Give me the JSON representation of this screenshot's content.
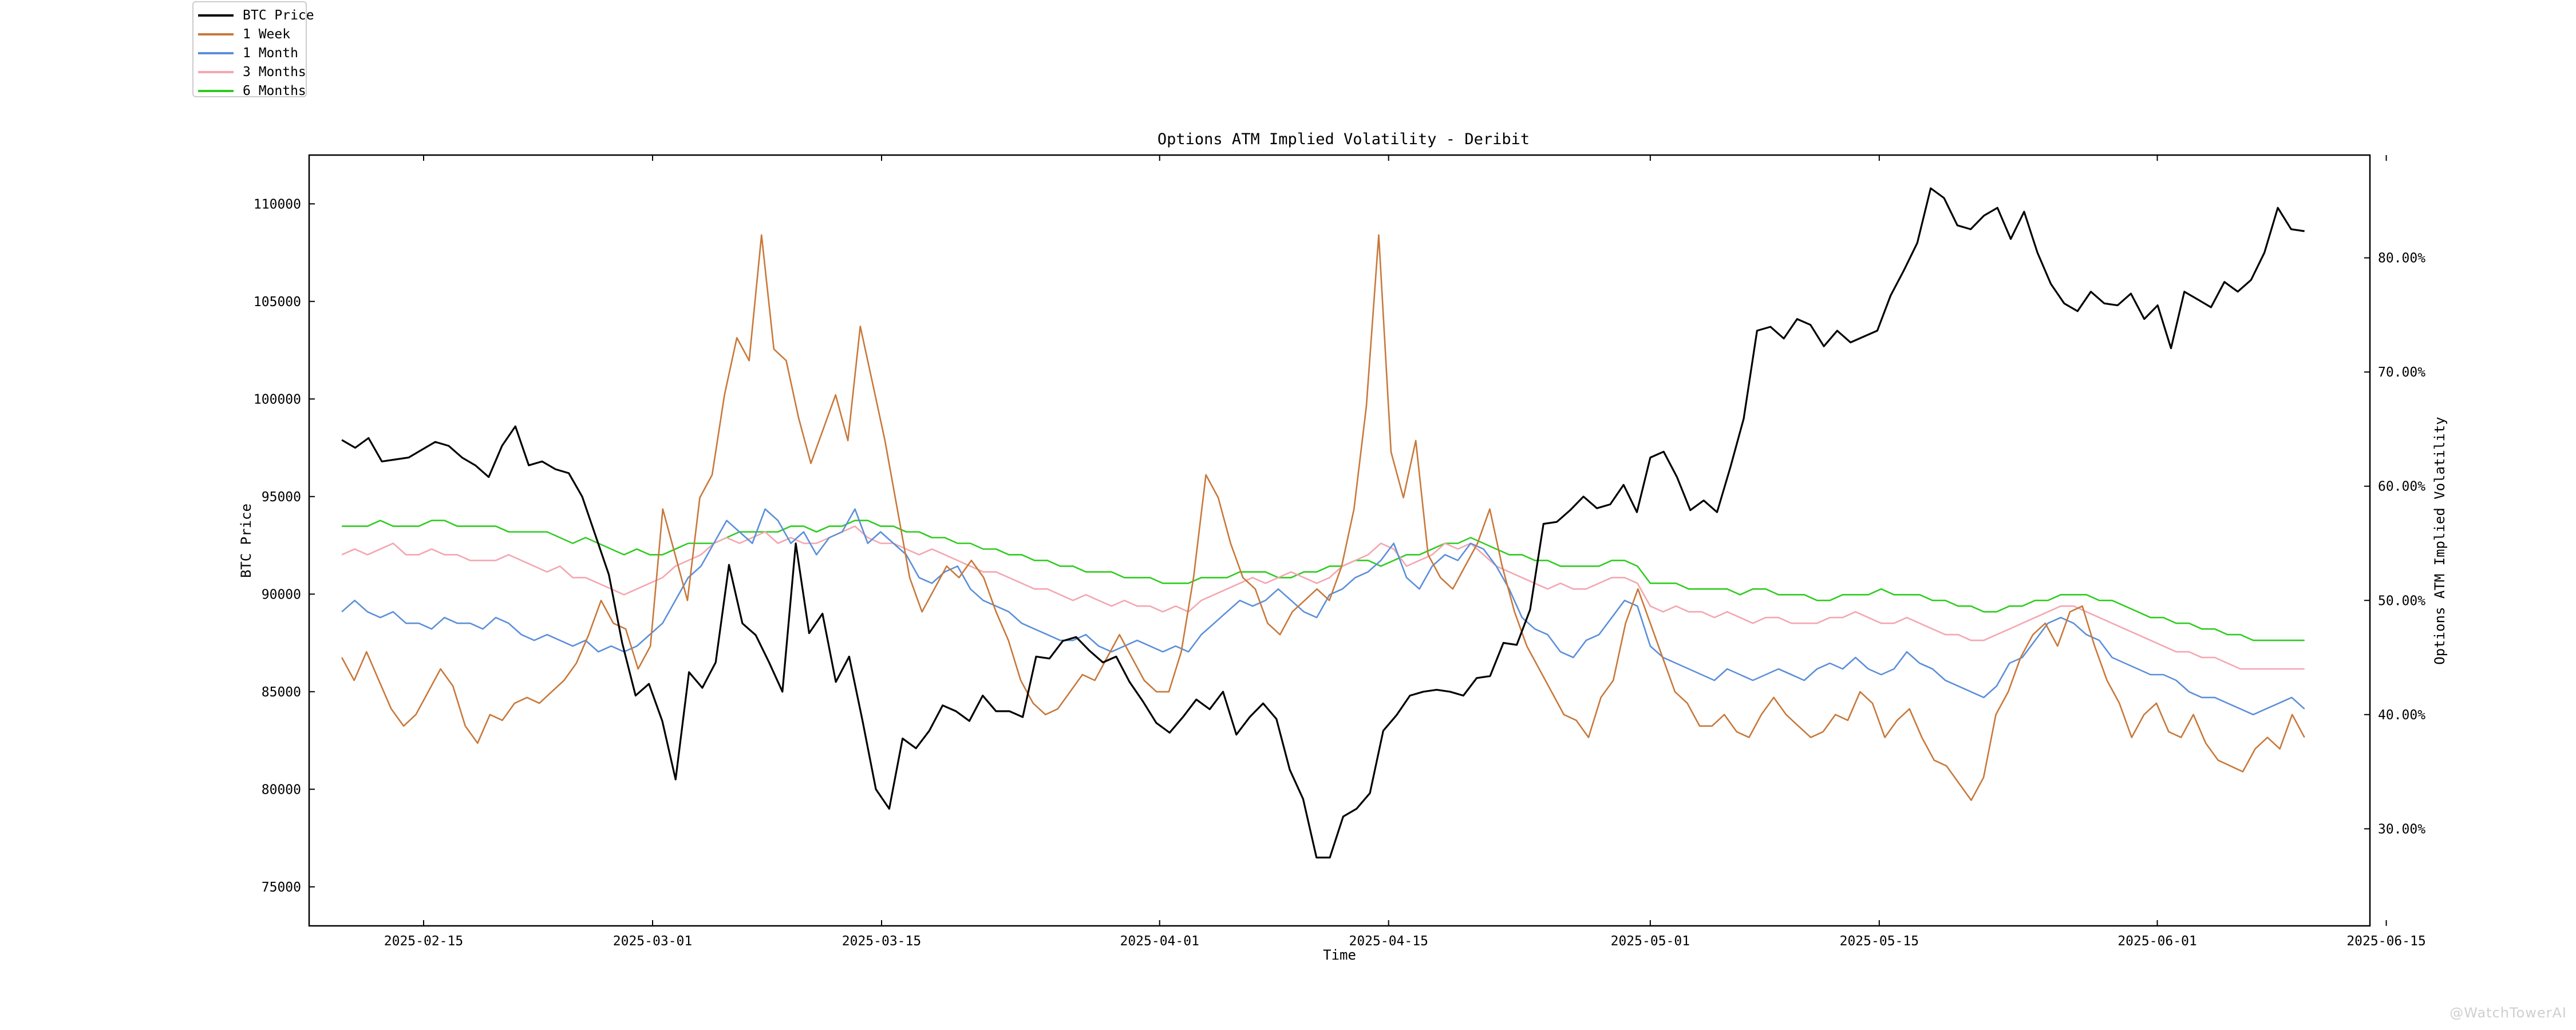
{
  "chart_data": {
    "type": "line",
    "title": "Options ATM Implied Volatility - Deribit",
    "xlabel": "Time",
    "ylabel_left": "BTC Price",
    "ylabel_right": "Options ATM Implied Volatility",
    "x_start": "2025-02-10",
    "x_end": "2025-06-10",
    "xlim": [
      "2025-02-08",
      "2025-06-14"
    ],
    "xticks": [
      "2025-02-15",
      "2025-03-01",
      "2025-03-15",
      "2025-04-01",
      "2025-04-15",
      "2025-05-01",
      "2025-05-15",
      "2025-06-01",
      "2025-06-15"
    ],
    "ylim_left": [
      73000,
      112500
    ],
    "yticks_left": [
      75000,
      80000,
      85000,
      90000,
      95000,
      100000,
      105000,
      110000
    ],
    "ylim_right": [
      21.5,
      89.0
    ],
    "yticks_right": [
      30,
      40,
      50,
      60,
      70,
      80
    ],
    "ytick_labels_right": [
      "30.00%",
      "40.00%",
      "50.00%",
      "60.00%",
      "70.00%",
      "80.00%"
    ],
    "grid": false,
    "legend_position": "top-left (outside plot)",
    "series": [
      {
        "name": "BTC Price",
        "axis": "left",
        "color": "#000000",
        "values": [
          97900,
          97500,
          98000,
          96800,
          96900,
          97000,
          97400,
          97800,
          97600,
          97000,
          96600,
          96000,
          97600,
          98600,
          96600,
          96800,
          96400,
          96200,
          95000,
          93000,
          91000,
          87500,
          84800,
          85400,
          83500,
          80500,
          86000,
          85200,
          86500,
          91500,
          88500,
          87900,
          86500,
          85000,
          92600,
          88000,
          89000,
          85500,
          86800,
          83500,
          80000,
          79000,
          82600,
          82100,
          83000,
          84300,
          84000,
          83500,
          84800,
          84000,
          84000,
          83700,
          86800,
          86700,
          87600,
          87800,
          87100,
          86500,
          86800,
          85500,
          84500,
          83400,
          82900,
          83700,
          84600,
          84100,
          85000,
          82800,
          83700,
          84400,
          83600,
          81000,
          79500,
          76500,
          76500,
          78600,
          79000,
          79800,
          83000,
          83800,
          84800,
          85000,
          85100,
          85000,
          84800,
          85700,
          85800,
          87500,
          87400,
          89200,
          93600,
          93700,
          94300,
          95000,
          94400,
          94600,
          95600,
          94200,
          97000,
          97300,
          96000,
          94300,
          94800,
          94200,
          96500,
          99000,
          103500,
          103700,
          103100,
          104100,
          103800,
          102700,
          103500,
          102900,
          103200,
          103500,
          105300,
          106600,
          108000,
          110800,
          110300,
          108900,
          108700,
          109400,
          109800,
          108200,
          109600,
          107500,
          105900,
          104900,
          104500,
          105500,
          104900,
          104800,
          105400,
          104100,
          104800,
          102600,
          105500,
          105100,
          104700,
          106000,
          105500,
          106100,
          107500,
          109800,
          108700,
          108600
        ]
      },
      {
        "name": "1 Week",
        "axis": "right",
        "color": "#c8783a",
        "values": [
          45.0,
          43.0,
          45.5,
          43.0,
          40.5,
          39.0,
          40.0,
          42.0,
          44.0,
          42.5,
          39.0,
          37.5,
          40.0,
          39.5,
          41.0,
          41.5,
          41.0,
          42.0,
          43.0,
          44.5,
          47.0,
          50.0,
          48.0,
          47.5,
          44.0,
          46.0,
          58.0,
          54.0,
          50.0,
          59.0,
          61.0,
          68.0,
          73.0,
          71.0,
          82.0,
          72.0,
          71.0,
          66.0,
          62.0,
          65.0,
          68.0,
          64.0,
          74.0,
          69.0,
          64.0,
          58.0,
          52.0,
          49.0,
          51.0,
          53.0,
          52.0,
          53.5,
          52.0,
          49.0,
          46.5,
          43.0,
          41.0,
          40.0,
          40.5,
          42.0,
          43.5,
          43.0,
          45.0,
          47.0,
          45.0,
          43.0,
          42.0,
          42.0,
          45.5,
          52.0,
          61.0,
          59.0,
          55.0,
          52.0,
          51.0,
          48.0,
          47.0,
          49.0,
          50.0,
          51.0,
          50.0,
          53.0,
          58.0,
          67.0,
          82.0,
          63.0,
          59.0,
          64.0,
          54.0,
          52.0,
          51.0,
          53.0,
          55.0,
          58.0,
          53.0,
          49.0,
          46.0,
          44.0,
          42.0,
          40.0,
          39.5,
          38.0,
          41.5,
          43.0,
          48.0,
          51.0,
          48.0,
          45.0,
          42.0,
          41.0,
          39.0,
          39.0,
          40.0,
          38.5,
          38.0,
          40.0,
          41.5,
          40.0,
          39.0,
          38.0,
          38.5,
          40.0,
          39.5,
          42.0,
          41.0,
          38.0,
          39.5,
          40.5,
          38.0,
          36.0,
          35.5,
          34.0,
          32.5,
          34.5,
          40.0,
          42.0,
          45.0,
          47.0,
          48.0,
          46.0,
          49.0,
          49.5,
          46.0,
          43.0,
          41.0,
          38.0,
          40.0,
          41.0,
          38.5,
          38.0,
          40.0,
          37.5,
          36.0,
          35.5,
          35.0,
          37.0,
          38.0,
          37.0,
          40.0,
          38.0
        ]
      },
      {
        "name": "1 Month",
        "axis": "right",
        "color": "#5b8fd9",
        "values": [
          49.0,
          50.0,
          49.0,
          48.5,
          49.0,
          48.0,
          48.0,
          47.5,
          48.5,
          48.0,
          48.0,
          47.5,
          48.5,
          48.0,
          47.0,
          46.5,
          47.0,
          46.5,
          46.0,
          46.5,
          45.5,
          46.0,
          45.5,
          46.0,
          47.0,
          48.0,
          50.0,
          52.0,
          53.0,
          55.0,
          57.0,
          56.0,
          55.0,
          58.0,
          57.0,
          55.0,
          56.0,
          54.0,
          55.5,
          56.0,
          58.0,
          55.0,
          56.0,
          55.0,
          54.0,
          52.0,
          51.5,
          52.5,
          53.0,
          51.0,
          50.0,
          49.5,
          49.0,
          48.0,
          47.5,
          47.0,
          46.5,
          46.5,
          47.0,
          46.0,
          45.5,
          46.0,
          46.5,
          46.0,
          45.5,
          46.0,
          45.5,
          47.0,
          48.0,
          49.0,
          50.0,
          49.5,
          50.0,
          51.0,
          50.0,
          49.0,
          48.5,
          50.5,
          51.0,
          52.0,
          52.5,
          53.5,
          55.0,
          52.0,
          51.0,
          53.0,
          54.0,
          53.5,
          55.0,
          54.5,
          53.0,
          51.0,
          48.5,
          47.5,
          47.0,
          45.5,
          45.0,
          46.5,
          47.0,
          48.5,
          50.0,
          49.5,
          46.0,
          45.0,
          44.5,
          44.0,
          43.5,
          43.0,
          44.0,
          43.5,
          43.0,
          43.5,
          44.0,
          43.5,
          43.0,
          44.0,
          44.5,
          44.0,
          45.0,
          44.0,
          43.5,
          44.0,
          45.5,
          44.5,
          44.0,
          43.0,
          42.5,
          42.0,
          41.5,
          42.5,
          44.5,
          45.0,
          46.5,
          48.0,
          48.5,
          48.0,
          47.0,
          46.5,
          45.0,
          44.5,
          44.0,
          43.5,
          43.5,
          43.0,
          42.0,
          41.5,
          41.5,
          41.0,
          40.5,
          40.0,
          40.5,
          41.0,
          41.5,
          40.5
        ]
      },
      {
        "name": "3 Months",
        "axis": "right",
        "color": "#f4a6b0",
        "values": [
          54.0,
          54.5,
          54.0,
          54.5,
          55.0,
          54.0,
          54.0,
          54.5,
          54.0,
          54.0,
          53.5,
          53.5,
          53.5,
          54.0,
          53.5,
          53.0,
          52.5,
          53.0,
          52.0,
          52.0,
          51.5,
          51.0,
          50.5,
          51.0,
          51.5,
          52.0,
          53.0,
          53.5,
          54.0,
          55.0,
          55.5,
          55.0,
          55.5,
          56.0,
          55.0,
          55.5,
          55.0,
          55.0,
          55.5,
          56.0,
          56.5,
          55.5,
          55.0,
          55.0,
          54.5,
          54.0,
          54.5,
          54.0,
          53.5,
          53.0,
          52.5,
          52.5,
          52.0,
          51.5,
          51.0,
          51.0,
          50.5,
          50.0,
          50.5,
          50.0,
          49.5,
          50.0,
          49.5,
          49.5,
          49.0,
          49.5,
          49.0,
          50.0,
          50.5,
          51.0,
          51.5,
          52.0,
          51.5,
          52.0,
          52.5,
          52.0,
          51.5,
          52.0,
          53.0,
          53.5,
          54.0,
          55.0,
          54.5,
          53.0,
          53.5,
          54.0,
          55.0,
          54.5,
          55.0,
          54.0,
          53.0,
          52.5,
          52.0,
          51.5,
          51.0,
          51.5,
          51.0,
          51.0,
          51.5,
          52.0,
          52.0,
          51.5,
          49.5,
          49.0,
          49.5,
          49.0,
          49.0,
          48.5,
          49.0,
          48.5,
          48.0,
          48.5,
          48.5,
          48.0,
          48.0,
          48.0,
          48.5,
          48.5,
          49.0,
          48.5,
          48.0,
          48.0,
          48.5,
          48.0,
          47.5,
          47.0,
          47.0,
          46.5,
          46.5,
          47.0,
          47.5,
          48.0,
          48.5,
          49.0,
          49.5,
          49.5,
          49.0,
          48.5,
          48.0,
          47.5,
          47.0,
          46.5,
          46.0,
          45.5,
          45.5,
          45.0,
          45.0,
          44.5,
          44.0,
          44.0,
          44.0,
          44.0,
          44.0,
          44.0
        ]
      },
      {
        "name": "6 Months",
        "axis": "right",
        "color": "#2ecc1f",
        "values": [
          56.5,
          56.5,
          56.5,
          57.0,
          56.5,
          56.5,
          56.5,
          57.0,
          57.0,
          56.5,
          56.5,
          56.5,
          56.5,
          56.0,
          56.0,
          56.0,
          56.0,
          55.5,
          55.0,
          55.5,
          55.0,
          54.5,
          54.0,
          54.5,
          54.0,
          54.0,
          54.5,
          55.0,
          55.0,
          55.0,
          55.5,
          56.0,
          56.0,
          56.0,
          56.0,
          56.5,
          56.5,
          56.0,
          56.5,
          56.5,
          57.0,
          57.0,
          56.5,
          56.5,
          56.0,
          56.0,
          55.5,
          55.5,
          55.0,
          55.0,
          54.5,
          54.5,
          54.0,
          54.0,
          53.5,
          53.5,
          53.0,
          53.0,
          52.5,
          52.5,
          52.5,
          52.0,
          52.0,
          52.0,
          51.5,
          51.5,
          51.5,
          52.0,
          52.0,
          52.0,
          52.5,
          52.5,
          52.5,
          52.0,
          52.0,
          52.5,
          52.5,
          53.0,
          53.0,
          53.5,
          53.5,
          53.0,
          53.5,
          54.0,
          54.0,
          54.5,
          55.0,
          55.0,
          55.5,
          55.0,
          54.5,
          54.0,
          54.0,
          53.5,
          53.5,
          53.0,
          53.0,
          53.0,
          53.0,
          53.5,
          53.5,
          53.0,
          51.5,
          51.5,
          51.5,
          51.0,
          51.0,
          51.0,
          51.0,
          50.5,
          51.0,
          51.0,
          50.5,
          50.5,
          50.5,
          50.0,
          50.0,
          50.5,
          50.5,
          50.5,
          51.0,
          50.5,
          50.5,
          50.5,
          50.0,
          50.0,
          49.5,
          49.5,
          49.0,
          49.0,
          49.5,
          49.5,
          50.0,
          50.0,
          50.5,
          50.5,
          50.5,
          50.0,
          50.0,
          49.5,
          49.0,
          48.5,
          48.5,
          48.0,
          48.0,
          47.5,
          47.5,
          47.0,
          47.0,
          46.5,
          46.5,
          46.5,
          46.5,
          46.5
        ]
      }
    ]
  },
  "watermark": "@WatchTowerAI"
}
